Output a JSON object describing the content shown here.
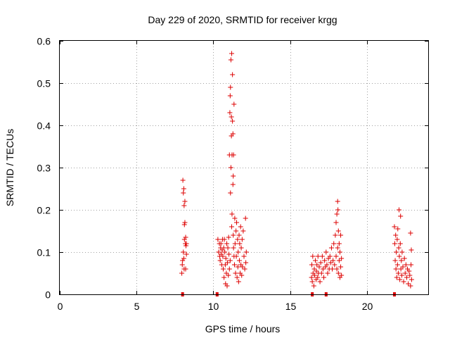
{
  "chart_data": {
    "type": "scatter",
    "title": "Day 229 of 2020, SRMTID for receiver krgg",
    "xlabel": "GPS time / hours",
    "ylabel": "SRMTID / TECUs",
    "xlim": [
      0,
      24
    ],
    "ylim": [
      0,
      0.6
    ],
    "xticks": [
      "0",
      "5",
      "10",
      "15",
      "20"
    ],
    "xtick_values": [
      0,
      5,
      10,
      15,
      20
    ],
    "yticks": [
      "0",
      "0.1",
      "0.2",
      "0.3",
      "0.4",
      "0.5",
      "0.6"
    ],
    "ytick_values": [
      0,
      0.1,
      0.2,
      0.3,
      0.4,
      0.5,
      0.6
    ],
    "grid": true,
    "marker": "+",
    "color": "#dd0000",
    "series": [
      {
        "name": "SRMTID",
        "points": [
          [
            7.95,
            0.05
          ],
          [
            8.0,
            0.08
          ],
          [
            8.02,
            0.27
          ],
          [
            8.05,
            0.24
          ],
          [
            8.05,
            0.1
          ],
          [
            8.08,
            0.25
          ],
          [
            8.1,
            0.21
          ],
          [
            8.1,
            0.06
          ],
          [
            8.12,
            0.13
          ],
          [
            8.12,
            0.165
          ],
          [
            8.15,
            0.22
          ],
          [
            8.15,
            0.17
          ],
          [
            8.18,
            0.12
          ],
          [
            8.2,
            0.06
          ],
          [
            8.2,
            0.135
          ],
          [
            8.22,
            0.115
          ],
          [
            8.25,
            0.12
          ],
          [
            8.25,
            0.095
          ],
          [
            7.98,
            0.07
          ],
          [
            8.08,
            0.085
          ],
          [
            10.3,
            0.13
          ],
          [
            10.35,
            0.1
          ],
          [
            10.4,
            0.12
          ],
          [
            10.42,
            0.09
          ],
          [
            10.45,
            0.08
          ],
          [
            10.48,
            0.11
          ],
          [
            10.5,
            0.12
          ],
          [
            10.52,
            0.095
          ],
          [
            10.55,
            0.07
          ],
          [
            10.58,
            0.105
          ],
          [
            10.6,
            0.13
          ],
          [
            10.62,
            0.09
          ],
          [
            10.65,
            0.06
          ],
          [
            10.68,
            0.11
          ],
          [
            10.7,
            0.04
          ],
          [
            10.72,
            0.13
          ],
          [
            10.75,
            0.1
          ],
          [
            10.78,
            0.07
          ],
          [
            10.8,
            0.025
          ],
          [
            10.82,
            0.085
          ],
          [
            10.85,
            0.05
          ],
          [
            10.88,
            0.12
          ],
          [
            10.9,
            0.02
          ],
          [
            10.92,
            0.075
          ],
          [
            10.95,
            0.11
          ],
          [
            10.98,
            0.045
          ],
          [
            11.0,
            0.135
          ],
          [
            11.02,
            0.095
          ],
          [
            11.05,
            0.06
          ],
          [
            11.05,
            0.33
          ],
          [
            11.08,
            0.43
          ],
          [
            11.1,
            0.47
          ],
          [
            11.1,
            0.08
          ],
          [
            11.12,
            0.49
          ],
          [
            11.12,
            0.24
          ],
          [
            11.15,
            0.555
          ],
          [
            11.15,
            0.3
          ],
          [
            11.18,
            0.375
          ],
          [
            11.18,
            0.42
          ],
          [
            11.2,
            0.57
          ],
          [
            11.2,
            0.16
          ],
          [
            11.22,
            0.33
          ],
          [
            11.22,
            0.19
          ],
          [
            11.25,
            0.52
          ],
          [
            11.25,
            0.41
          ],
          [
            11.28,
            0.38
          ],
          [
            11.28,
            0.26
          ],
          [
            11.3,
            0.28
          ],
          [
            11.3,
            0.14
          ],
          [
            11.32,
            0.33
          ],
          [
            11.32,
            0.11
          ],
          [
            11.35,
            0.45
          ],
          [
            11.35,
            0.09
          ],
          [
            11.38,
            0.07
          ],
          [
            11.4,
            0.18
          ],
          [
            11.42,
            0.12
          ],
          [
            11.45,
            0.05
          ],
          [
            11.48,
            0.15
          ],
          [
            11.5,
            0.09
          ],
          [
            11.52,
            0.17
          ],
          [
            11.55,
            0.04
          ],
          [
            11.58,
            0.13
          ],
          [
            11.6,
            0.065
          ],
          [
            11.62,
            0.1
          ],
          [
            11.65,
            0.03
          ],
          [
            11.68,
            0.14
          ],
          [
            11.7,
            0.08
          ],
          [
            11.72,
            0.12
          ],
          [
            11.75,
            0.05
          ],
          [
            11.78,
            0.16
          ],
          [
            11.8,
            0.07
          ],
          [
            11.82,
            0.11
          ],
          [
            11.85,
            0.045
          ],
          [
            11.88,
            0.13
          ],
          [
            11.9,
            0.065
          ],
          [
            11.95,
            0.15
          ],
          [
            12.0,
            0.09
          ],
          [
            12.05,
            0.06
          ],
          [
            12.1,
            0.18
          ],
          [
            12.12,
            0.075
          ],
          [
            12.15,
            0.1
          ],
          [
            16.4,
            0.04
          ],
          [
            16.42,
            0.07
          ],
          [
            16.45,
            0.03
          ],
          [
            16.48,
            0.09
          ],
          [
            16.5,
            0.05
          ],
          [
            16.55,
            0.02
          ],
          [
            16.58,
            0.06
          ],
          [
            16.6,
            0.045
          ],
          [
            16.65,
            0.08
          ],
          [
            16.7,
            0.035
          ],
          [
            16.72,
            0.055
          ],
          [
            16.75,
            0.07
          ],
          [
            16.8,
            0.04
          ],
          [
            16.82,
            0.09
          ],
          [
            16.85,
            0.05
          ],
          [
            16.9,
            0.065
          ],
          [
            16.95,
            0.03
          ],
          [
            17.0,
            0.075
          ],
          [
            17.05,
            0.05
          ],
          [
            17.1,
            0.09
          ],
          [
            17.15,
            0.06
          ],
          [
            17.2,
            0.04
          ],
          [
            17.25,
            0.08
          ],
          [
            17.3,
            0.065
          ],
          [
            17.35,
            0.1
          ],
          [
            17.4,
            0.07
          ],
          [
            17.45,
            0.05
          ],
          [
            17.5,
            0.085
          ],
          [
            17.55,
            0.06
          ],
          [
            17.6,
            0.09
          ],
          [
            17.65,
            0.075
          ],
          [
            17.7,
            0.11
          ],
          [
            17.75,
            0.06
          ],
          [
            17.8,
            0.08
          ],
          [
            17.85,
            0.12
          ],
          [
            17.9,
            0.07
          ],
          [
            17.95,
            0.14
          ],
          [
            18.0,
            0.09
          ],
          [
            18.0,
            0.17
          ],
          [
            18.05,
            0.06
          ],
          [
            18.05,
            0.19
          ],
          [
            18.1,
            0.11
          ],
          [
            18.1,
            0.22
          ],
          [
            18.12,
            0.2
          ],
          [
            18.15,
            0.05
          ],
          [
            18.15,
            0.15
          ],
          [
            18.2,
            0.08
          ],
          [
            18.2,
            0.12
          ],
          [
            18.25,
            0.04
          ],
          [
            18.25,
            0.1
          ],
          [
            18.3,
            0.065
          ],
          [
            18.3,
            0.14
          ],
          [
            18.35,
            0.045
          ],
          [
            18.35,
            0.085
          ],
          [
            21.8,
            0.16
          ],
          [
            21.82,
            0.12
          ],
          [
            21.85,
            0.08
          ],
          [
            21.88,
            0.14
          ],
          [
            21.9,
            0.06
          ],
          [
            21.92,
            0.1
          ],
          [
            21.95,
            0.04
          ],
          [
            21.98,
            0.13
          ],
          [
            22.0,
            0.07
          ],
          [
            22.02,
            0.155
          ],
          [
            22.05,
            0.05
          ],
          [
            22.08,
            0.11
          ],
          [
            22.1,
            0.2
          ],
          [
            22.12,
            0.09
          ],
          [
            22.15,
            0.035
          ],
          [
            22.18,
            0.12
          ],
          [
            22.2,
            0.185
          ],
          [
            22.22,
            0.06
          ],
          [
            22.25,
            0.08
          ],
          [
            22.28,
            0.045
          ],
          [
            22.3,
            0.1
          ],
          [
            22.35,
            0.065
          ],
          [
            22.4,
            0.03
          ],
          [
            22.45,
            0.085
          ],
          [
            22.5,
            0.05
          ],
          [
            22.55,
            0.07
          ],
          [
            22.6,
            0.04
          ],
          [
            22.65,
            0.06
          ],
          [
            22.7,
            0.025
          ],
          [
            22.75,
            0.055
          ],
          [
            22.8,
            0.045
          ],
          [
            22.85,
            0.02
          ],
          [
            22.85,
            0.145
          ],
          [
            22.88,
            0.07
          ],
          [
            22.9,
            0.105
          ],
          [
            22.92,
            0.035
          ]
        ]
      }
    ],
    "flag_markers": {
      "name": "data-gap markers",
      "x": [
        8.0,
        10.25,
        16.45,
        17.35,
        21.8
      ],
      "y": 0
    }
  }
}
